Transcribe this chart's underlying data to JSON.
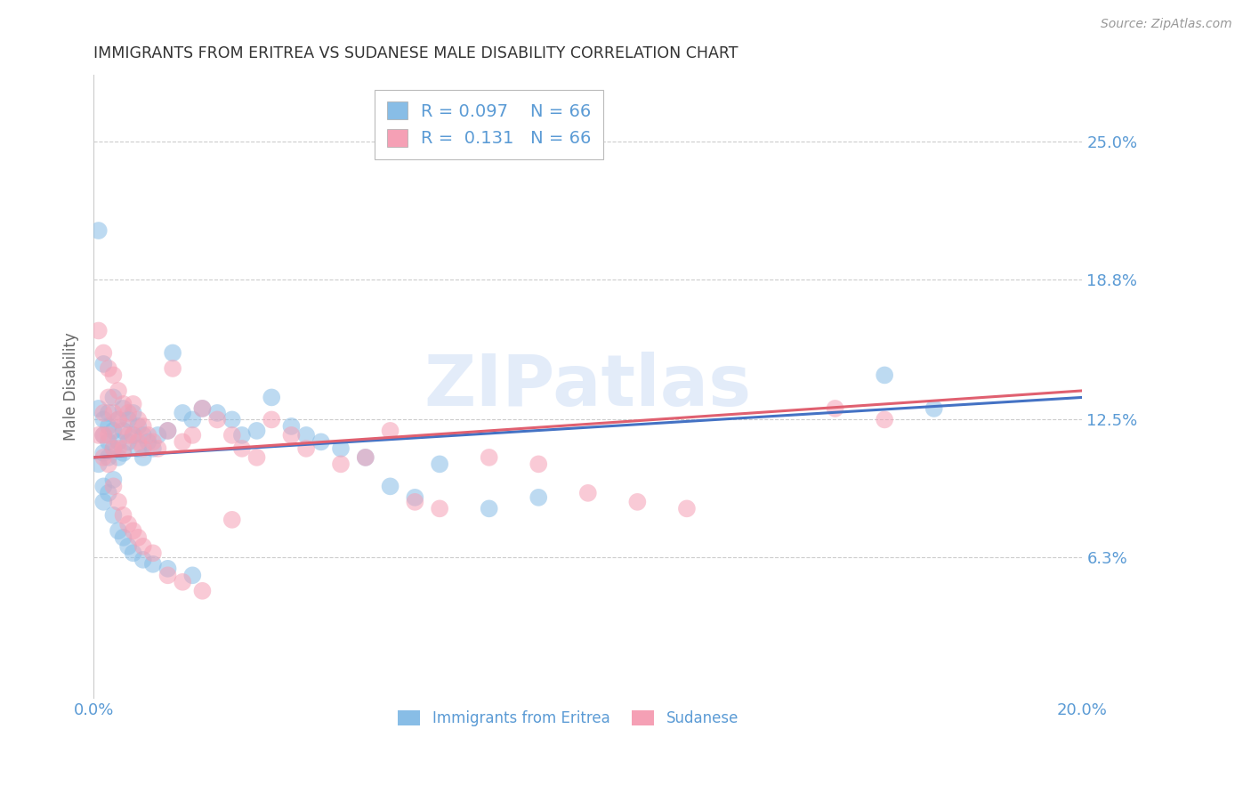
{
  "title": "IMMIGRANTS FROM ERITREA VS SUDANESE MALE DISABILITY CORRELATION CHART",
  "source": "Source: ZipAtlas.com",
  "ylabel": "Male Disability",
  "xlim": [
    0.0,
    0.2
  ],
  "ylim": [
    0.0,
    0.28
  ],
  "ytick_positions": [
    0.063,
    0.125,
    0.188,
    0.25
  ],
  "ytick_labels": [
    "6.3%",
    "12.5%",
    "18.8%",
    "25.0%"
  ],
  "xtick_positions": [
    0.0,
    0.04,
    0.08,
    0.12,
    0.16,
    0.2
  ],
  "xtick_labels": [
    "0.0%",
    "",
    "",
    "",
    "",
    "20.0%"
  ],
  "color_eritrea": "#88bde6",
  "color_sudanese": "#f5a0b5",
  "color_line_eritrea": "#4472c4",
  "color_line_sudanese": "#e06070",
  "color_tick_labels": "#5b9bd5",
  "color_ylabel": "#666666",
  "color_title": "#333333",
  "color_source": "#999999",
  "color_grid": "#cccccc",
  "color_watermark": "#c8daf5",
  "watermark_text": "ZIPatlas",
  "legend_r1": "R = 0.097",
  "legend_n1": "N = 66",
  "legend_r2": "R =  0.131",
  "legend_n2": "N = 66",
  "legend_label1": "Immigrants from Eritrea",
  "legend_label2": "Sudanese",
  "eritrea_x": [
    0.001,
    0.001,
    0.002,
    0.002,
    0.002,
    0.002,
    0.003,
    0.003,
    0.003,
    0.003,
    0.004,
    0.004,
    0.004,
    0.005,
    0.005,
    0.005,
    0.006,
    0.006,
    0.006,
    0.007,
    0.007,
    0.008,
    0.008,
    0.009,
    0.009,
    0.01,
    0.01,
    0.011,
    0.012,
    0.013,
    0.015,
    0.016,
    0.018,
    0.02,
    0.022,
    0.025,
    0.028,
    0.03,
    0.033,
    0.036,
    0.04,
    0.043,
    0.046,
    0.05,
    0.055,
    0.06,
    0.065,
    0.07,
    0.08,
    0.09,
    0.001,
    0.002,
    0.002,
    0.003,
    0.004,
    0.004,
    0.005,
    0.006,
    0.007,
    0.008,
    0.01,
    0.012,
    0.015,
    0.02,
    0.16,
    0.17
  ],
  "eritrea_y": [
    0.21,
    0.13,
    0.15,
    0.125,
    0.118,
    0.11,
    0.128,
    0.122,
    0.115,
    0.108,
    0.135,
    0.12,
    0.112,
    0.125,
    0.115,
    0.108,
    0.13,
    0.12,
    0.11,
    0.125,
    0.115,
    0.128,
    0.118,
    0.122,
    0.112,
    0.118,
    0.108,
    0.115,
    0.112,
    0.118,
    0.12,
    0.155,
    0.128,
    0.125,
    0.13,
    0.128,
    0.125,
    0.118,
    0.12,
    0.135,
    0.122,
    0.118,
    0.115,
    0.112,
    0.108,
    0.095,
    0.09,
    0.105,
    0.085,
    0.09,
    0.105,
    0.095,
    0.088,
    0.092,
    0.098,
    0.082,
    0.075,
    0.072,
    0.068,
    0.065,
    0.062,
    0.06,
    0.058,
    0.055,
    0.145,
    0.13
  ],
  "sudanese_x": [
    0.001,
    0.001,
    0.002,
    0.002,
    0.002,
    0.003,
    0.003,
    0.003,
    0.004,
    0.004,
    0.004,
    0.005,
    0.005,
    0.005,
    0.006,
    0.006,
    0.006,
    0.007,
    0.007,
    0.008,
    0.008,
    0.009,
    0.009,
    0.01,
    0.01,
    0.011,
    0.012,
    0.013,
    0.015,
    0.016,
    0.018,
    0.02,
    0.022,
    0.025,
    0.028,
    0.03,
    0.033,
    0.036,
    0.04,
    0.043,
    0.05,
    0.055,
    0.06,
    0.065,
    0.07,
    0.08,
    0.09,
    0.1,
    0.11,
    0.12,
    0.002,
    0.003,
    0.004,
    0.005,
    0.006,
    0.007,
    0.008,
    0.009,
    0.01,
    0.012,
    0.015,
    0.018,
    0.022,
    0.028,
    0.15,
    0.16
  ],
  "sudanese_y": [
    0.165,
    0.118,
    0.155,
    0.128,
    0.118,
    0.148,
    0.135,
    0.118,
    0.145,
    0.128,
    0.112,
    0.138,
    0.125,
    0.112,
    0.132,
    0.122,
    0.112,
    0.128,
    0.118,
    0.132,
    0.118,
    0.125,
    0.115,
    0.122,
    0.112,
    0.118,
    0.115,
    0.112,
    0.12,
    0.148,
    0.115,
    0.118,
    0.13,
    0.125,
    0.118,
    0.112,
    0.108,
    0.125,
    0.118,
    0.112,
    0.105,
    0.108,
    0.12,
    0.088,
    0.085,
    0.108,
    0.105,
    0.092,
    0.088,
    0.085,
    0.108,
    0.105,
    0.095,
    0.088,
    0.082,
    0.078,
    0.075,
    0.072,
    0.068,
    0.065,
    0.055,
    0.052,
    0.048,
    0.08,
    0.13,
    0.125
  ],
  "line_eritrea_x0": 0.0,
  "line_eritrea_x1": 0.2,
  "line_eritrea_y0": 0.108,
  "line_eritrea_y1": 0.135,
  "line_sudanese_x0": 0.0,
  "line_sudanese_x1": 0.2,
  "line_sudanese_y0": 0.108,
  "line_sudanese_y1": 0.138
}
